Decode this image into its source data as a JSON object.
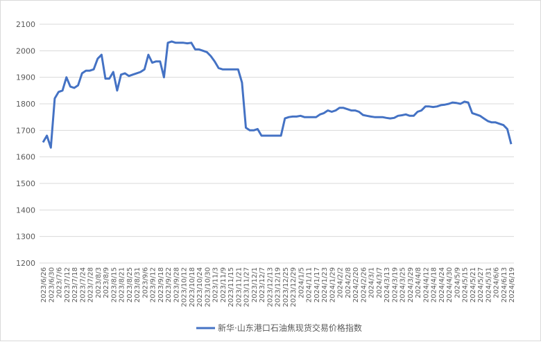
{
  "chart_data": {
    "type": "line",
    "categories": [
      "2023/6/26",
      null,
      "2023/6/30",
      null,
      "2023/7/6",
      null,
      "2023/7/12",
      null,
      "2023/7/18",
      null,
      "2023/7/24",
      null,
      "2023/7/28",
      null,
      "2023/8/3",
      null,
      "2023/8/9",
      null,
      "2023/8/15",
      null,
      "2023/8/21",
      null,
      "2023/8/25",
      null,
      "2023/8/31",
      null,
      "2023/9/6",
      null,
      "2023/9/12",
      null,
      "2023/9/18",
      null,
      "2023/9/22",
      null,
      "2023/9/28",
      null,
      "2023/10/12",
      null,
      "2023/10/18",
      null,
      "2023/10/24",
      null,
      "2023/10/30",
      null,
      "2023/11/3",
      null,
      "2023/11/9",
      null,
      "2023/11/15",
      null,
      "2023/11/21",
      null,
      "2023/11/27",
      null,
      "2023/12/1",
      null,
      "2023/12/7",
      null,
      "2023/12/13",
      null,
      "2023/12/19",
      null,
      "2023/12/25",
      null,
      "2023/12/29",
      null,
      "2024/1/5",
      null,
      "2024/1/11",
      null,
      "2024/1/17",
      null,
      "2024/1/23",
      null,
      "2024/1/29",
      null,
      "2024/2/2",
      null,
      "2024/2/8",
      null,
      "2024/2/20",
      null,
      "2024/2/26",
      null,
      "2024/3/1",
      null,
      "2024/3/7",
      null,
      "2024/3/13",
      null,
      "2024/3/19",
      null,
      "2024/3/25",
      null,
      "2024/3/29",
      null,
      "2024/4/8",
      null,
      "2024/4/12",
      null,
      "2024/4/18",
      null,
      "2024/4/24",
      null,
      "2024/4/30",
      null,
      "2024/5/9",
      null,
      "2024/5/15",
      null,
      "2024/5/21",
      null,
      "2024/5/27",
      null,
      "2024/5/31",
      null,
      "2024/6/6",
      null,
      "2024/6/13",
      null,
      "2024/6/19"
    ],
    "series": [
      {
        "name": "新华·山东港口石油焦现货交易价格指数",
        "color": "#4472c4",
        "values": [
          1655,
          1680,
          1635,
          1820,
          1845,
          1850,
          1900,
          1865,
          1860,
          1870,
          1915,
          1925,
          1925,
          1930,
          1970,
          1985,
          1895,
          1895,
          1920,
          1850,
          1910,
          1915,
          1905,
          1910,
          1915,
          1920,
          1930,
          1985,
          1955,
          1960,
          1960,
          1900,
          2030,
          2035,
          2030,
          2030,
          2030,
          2028,
          2030,
          2005,
          2005,
          2000,
          1995,
          1980,
          1960,
          1935,
          1930,
          1930,
          1930,
          1930,
          1930,
          1880,
          1710,
          1700,
          1700,
          1705,
          1680,
          1680,
          1680,
          1680,
          1680,
          1680,
          1745,
          1750,
          1752,
          1752,
          1755,
          1750,
          1750,
          1750,
          1750,
          1760,
          1765,
          1775,
          1770,
          1775,
          1785,
          1785,
          1780,
          1775,
          1775,
          1770,
          1758,
          1755,
          1752,
          1750,
          1750,
          1750,
          1747,
          1745,
          1747,
          1755,
          1757,
          1760,
          1755,
          1755,
          1770,
          1775,
          1790,
          1790,
          1788,
          1790,
          1795,
          1797,
          1800,
          1805,
          1803,
          1800,
          1808,
          1805,
          1765,
          1760,
          1755,
          1745,
          1735,
          1730,
          1730,
          1725,
          1720,
          1705,
          1648
        ]
      }
    ],
    "ylim": [
      1200,
      2100
    ],
    "yticks": [
      1200,
      1300,
      1400,
      1500,
      1600,
      1700,
      1800,
      1900,
      2000,
      2100
    ],
    "grid": true
  }
}
